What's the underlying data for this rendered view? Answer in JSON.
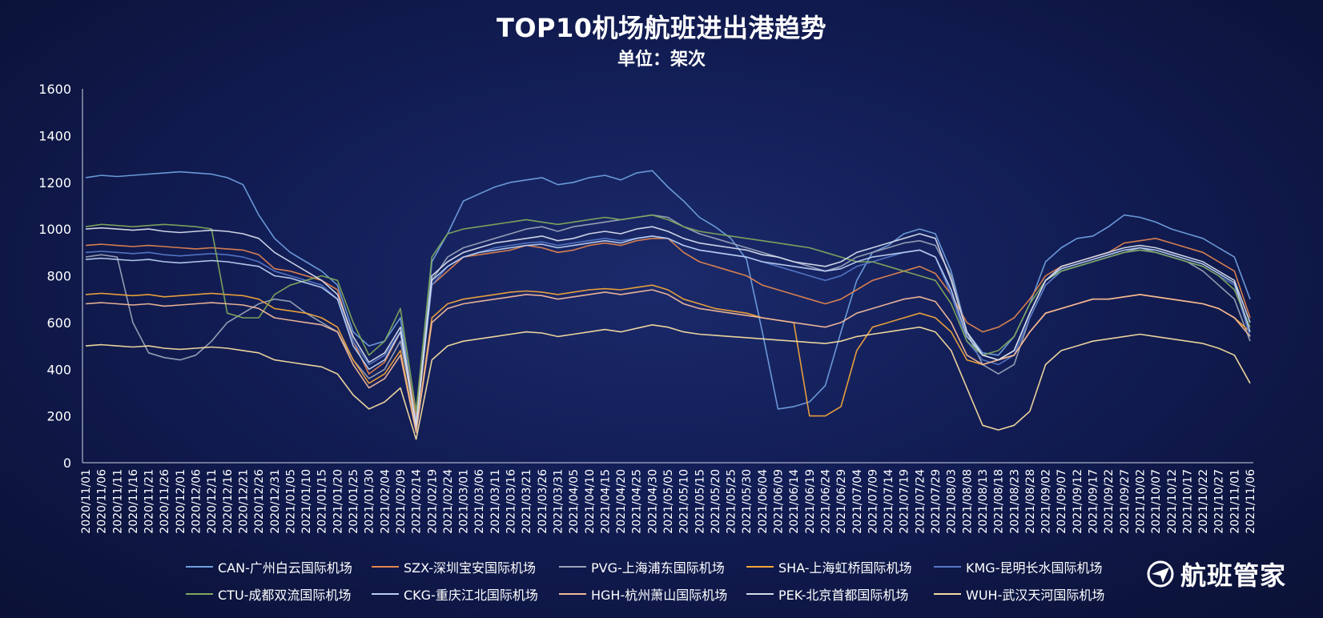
{
  "chart_data": {
    "type": "line",
    "title": "TOP10机场航班进出港趋势",
    "subtitle": "单位：架次",
    "ylim": [
      0,
      1600
    ],
    "yticks": [
      "0",
      "200",
      "400",
      "600",
      "800",
      "1000",
      "1200",
      "1400",
      "1600"
    ],
    "x_labels": [
      "2020/11/01",
      "2020/11/06",
      "2020/11/11",
      "2020/11/16",
      "2020/11/21",
      "2020/11/26",
      "2020/12/01",
      "2020/12/06",
      "2020/12/11",
      "2020/12/16",
      "2020/12/21",
      "2020/12/26",
      "2020/12/31",
      "2021/01/05",
      "2021/01/10",
      "2021/01/15",
      "2021/01/20",
      "2021/01/25",
      "2021/01/30",
      "2021/02/04",
      "2021/02/09",
      "2021/02/14",
      "2021/02/19",
      "2021/02/24",
      "2021/03/01",
      "2021/03/06",
      "2021/03/11",
      "2021/03/16",
      "2021/03/21",
      "2021/03/26",
      "2021/03/31",
      "2021/04/05",
      "2021/04/10",
      "2021/04/15",
      "2021/04/20",
      "2021/04/25",
      "2021/04/30",
      "2021/05/05",
      "2021/05/10",
      "2021/05/15",
      "2021/05/20",
      "2021/05/25",
      "2021/05/30",
      "2021/06/04",
      "2021/06/09",
      "2021/06/14",
      "2021/06/19",
      "2021/06/24",
      "2021/06/29",
      "2021/07/04",
      "2021/07/09",
      "2021/07/14",
      "2021/07/19",
      "2021/07/24",
      "2021/07/29",
      "2021/08/03",
      "2021/08/08",
      "2021/08/13",
      "2021/08/18",
      "2021/08/23",
      "2021/08/28",
      "2021/09/02",
      "2021/09/07",
      "2021/09/12",
      "2021/09/17",
      "2021/09/22",
      "2021/09/27",
      "2021/10/02",
      "2021/10/07",
      "2021/10/12",
      "2021/10/17",
      "2021/10/22",
      "2021/10/27",
      "2021/11/01",
      "2021/11/06"
    ],
    "grid": false,
    "legend_position": "bottom",
    "series": [
      {
        "name": "CAN-广州白云国际机场",
        "color": "#6f9fde",
        "values": [
          1220,
          1230,
          1225,
          1230,
          1235,
          1240,
          1245,
          1240,
          1235,
          1220,
          1190,
          1060,
          960,
          900,
          860,
          820,
          760,
          560,
          500,
          520,
          620,
          180,
          860,
          980,
          1120,
          1150,
          1180,
          1200,
          1210,
          1220,
          1190,
          1200,
          1220,
          1230,
          1210,
          1240,
          1250,
          1180,
          1120,
          1050,
          1010,
          960,
          870,
          560,
          230,
          240,
          260,
          330,
          560,
          780,
          900,
          930,
          980,
          1000,
          980,
          820,
          560,
          470,
          460,
          540,
          680,
          860,
          920,
          960,
          970,
          1010,
          1060,
          1050,
          1030,
          1000,
          980,
          960,
          920,
          880,
          700
        ]
      },
      {
        "name": "SZX-深圳宝安国际机场",
        "color": "#e0844f",
        "values": [
          930,
          935,
          930,
          925,
          930,
          925,
          920,
          915,
          920,
          915,
          910,
          890,
          830,
          820,
          800,
          780,
          740,
          520,
          380,
          430,
          560,
          200,
          760,
          820,
          880,
          890,
          900,
          910,
          930,
          920,
          900,
          910,
          930,
          940,
          930,
          950,
          960,
          960,
          900,
          860,
          840,
          820,
          800,
          760,
          740,
          720,
          700,
          680,
          700,
          740,
          780,
          800,
          820,
          840,
          810,
          720,
          600,
          560,
          580,
          620,
          700,
          800,
          840,
          860,
          880,
          900,
          940,
          950,
          960,
          940,
          920,
          900,
          860,
          820,
          620
        ]
      },
      {
        "name": "PVG-上海浦东国际机场",
        "color": "#9aa3b8",
        "values": [
          880,
          890,
          880,
          600,
          470,
          450,
          440,
          460,
          520,
          600,
          640,
          680,
          700,
          690,
          640,
          600,
          560,
          440,
          360,
          400,
          520,
          180,
          780,
          880,
          920,
          940,
          960,
          980,
          1000,
          1010,
          990,
          1010,
          1020,
          1030,
          1040,
          1050,
          1060,
          1050,
          1010,
          980,
          960,
          940,
          920,
          900,
          880,
          860,
          840,
          820,
          840,
          880,
          900,
          920,
          940,
          950,
          930,
          800,
          560,
          420,
          380,
          420,
          620,
          760,
          820,
          840,
          860,
          880,
          900,
          920,
          900,
          880,
          860,
          820,
          760,
          700,
          520
        ]
      },
      {
        "name": "SHA-上海虹桥国际机场",
        "color": "#f0a43a",
        "values": [
          720,
          725,
          720,
          715,
          720,
          710,
          715,
          720,
          725,
          720,
          715,
          700,
          660,
          650,
          640,
          620,
          580,
          440,
          340,
          380,
          480,
          140,
          620,
          680,
          700,
          710,
          720,
          730,
          735,
          730,
          720,
          730,
          740,
          745,
          740,
          750,
          760,
          740,
          700,
          680,
          660,
          650,
          640,
          620,
          610,
          600,
          200,
          200,
          240,
          480,
          580,
          600,
          620,
          640,
          620,
          560,
          440,
          420,
          440,
          460,
          560,
          640,
          660,
          680,
          700,
          700,
          710,
          720,
          710,
          700,
          690,
          680,
          660,
          620,
          560
        ]
      },
      {
        "name": "KMG-昆明长水国际机场",
        "color": "#5477c6",
        "values": [
          900,
          905,
          900,
          895,
          900,
          890,
          885,
          890,
          895,
          890,
          880,
          860,
          820,
          800,
          780,
          760,
          700,
          520,
          420,
          460,
          560,
          160,
          760,
          840,
          880,
          900,
          920,
          930,
          940,
          945,
          930,
          940,
          950,
          960,
          950,
          960,
          970,
          960,
          930,
          910,
          900,
          890,
          880,
          860,
          840,
          820,
          800,
          780,
          800,
          840,
          860,
          880,
          900,
          910,
          880,
          720,
          520,
          440,
          420,
          460,
          620,
          760,
          820,
          840,
          860,
          880,
          900,
          910,
          900,
          880,
          860,
          840,
          800,
          760,
          540
        ]
      },
      {
        "name": "CTU-成都双流国际机场",
        "color": "#7fa85c",
        "values": [
          1010,
          1020,
          1015,
          1010,
          1015,
          1020,
          1015,
          1010,
          1000,
          640,
          620,
          620,
          720,
          760,
          780,
          800,
          780,
          600,
          460,
          520,
          660,
          220,
          880,
          980,
          1000,
          1010,
          1020,
          1030,
          1040,
          1030,
          1020,
          1030,
          1040,
          1050,
          1040,
          1050,
          1060,
          1040,
          1010,
          990,
          980,
          970,
          960,
          950,
          940,
          930,
          920,
          900,
          880,
          860,
          860,
          840,
          820,
          800,
          780,
          680,
          520,
          460,
          480,
          540,
          680,
          780,
          820,
          840,
          860,
          880,
          900,
          910,
          900,
          880,
          860,
          840,
          800,
          740,
          580
        ]
      },
      {
        "name": "CKG-重庆江北国际机场",
        "color": "#b9cff2",
        "values": [
          870,
          875,
          870,
          865,
          870,
          860,
          855,
          860,
          865,
          860,
          850,
          840,
          800,
          790,
          770,
          750,
          700,
          500,
          400,
          440,
          560,
          150,
          780,
          840,
          880,
          900,
          910,
          920,
          930,
          935,
          920,
          930,
          940,
          950,
          940,
          960,
          970,
          960,
          930,
          910,
          900,
          890,
          880,
          860,
          850,
          840,
          830,
          820,
          830,
          860,
          880,
          890,
          900,
          910,
          880,
          740,
          540,
          460,
          440,
          480,
          640,
          780,
          830,
          850,
          870,
          890,
          910,
          920,
          910,
          890,
          870,
          850,
          810,
          770,
          560
        ]
      },
      {
        "name": "HGH-杭州萧山国际机场",
        "color": "#f3b89a",
        "values": [
          680,
          685,
          680,
          675,
          680,
          670,
          675,
          680,
          685,
          680,
          675,
          660,
          620,
          610,
          600,
          590,
          560,
          420,
          320,
          360,
          460,
          130,
          600,
          660,
          680,
          690,
          700,
          710,
          720,
          715,
          700,
          710,
          720,
          730,
          720,
          730,
          740,
          720,
          680,
          660,
          650,
          640,
          630,
          620,
          610,
          600,
          590,
          580,
          600,
          640,
          660,
          680,
          700,
          710,
          690,
          600,
          460,
          420,
          440,
          460,
          560,
          640,
          660,
          680,
          700,
          700,
          710,
          720,
          710,
          700,
          690,
          680,
          660,
          620,
          540
        ]
      },
      {
        "name": "PEK-北京首都国际机场",
        "color": "#d6dcec",
        "values": [
          1000,
          1005,
          1000,
          995,
          1000,
          990,
          985,
          990,
          995,
          990,
          980,
          960,
          900,
          860,
          820,
          780,
          720,
          540,
          430,
          470,
          580,
          160,
          800,
          860,
          900,
          920,
          940,
          950,
          960,
          970,
          950,
          960,
          980,
          990,
          980,
          1000,
          1010,
          990,
          960,
          940,
          930,
          920,
          910,
          890,
          880,
          860,
          850,
          840,
          860,
          900,
          920,
          940,
          960,
          980,
          960,
          780,
          560,
          460,
          440,
          480,
          640,
          780,
          840,
          860,
          880,
          900,
          920,
          930,
          920,
          900,
          880,
          860,
          820,
          780,
          600
        ]
      },
      {
        "name": "WUH-武汉天河国际机场",
        "color": "#f5dca0",
        "values": [
          500,
          505,
          500,
          495,
          500,
          490,
          485,
          490,
          495,
          490,
          480,
          470,
          440,
          430,
          420,
          410,
          380,
          290,
          230,
          260,
          320,
          100,
          440,
          500,
          520,
          530,
          540,
          550,
          560,
          555,
          540,
          550,
          560,
          570,
          560,
          575,
          590,
          580,
          560,
          550,
          545,
          540,
          535,
          530,
          525,
          520,
          515,
          510,
          520,
          540,
          550,
          560,
          570,
          580,
          560,
          480,
          320,
          160,
          140,
          160,
          220,
          420,
          480,
          500,
          520,
          530,
          540,
          550,
          540,
          530,
          520,
          510,
          490,
          460,
          340
        ]
      }
    ]
  },
  "brand": {
    "name": "航班管家"
  }
}
